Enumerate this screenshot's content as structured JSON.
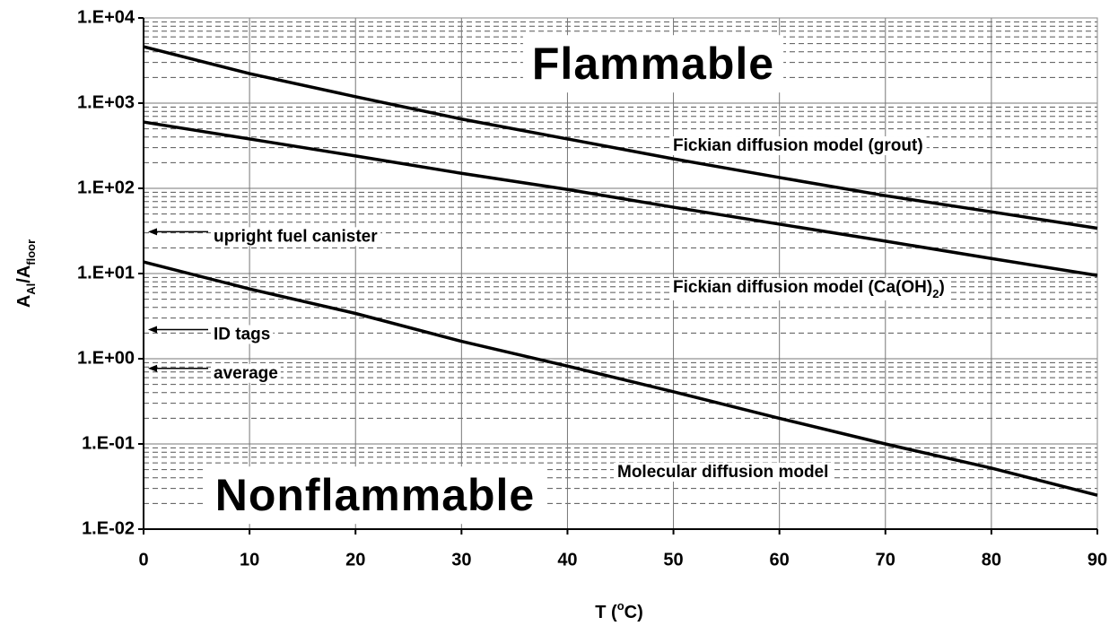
{
  "chart_data": {
    "type": "line",
    "xlabel": [
      "T (",
      "o",
      "C)"
    ],
    "ylabel": [
      "A",
      "Al",
      "/A",
      "floor"
    ],
    "x": [
      0,
      10,
      20,
      30,
      40,
      50,
      60,
      70,
      80,
      90
    ],
    "series": [
      {
        "label": [
          "Fickian diffusion model (grout)"
        ],
        "color": "#000000",
        "values": [
          4600,
          2220,
          1190,
          650,
          380,
          222,
          134,
          82,
          53,
          34
        ]
      },
      {
        "label": [
          "Fickian diffusion model (Ca(OH)",
          "2",
          ")"
        ],
        "color": "#000000",
        "values": [
          600,
          380,
          240,
          150,
          97,
          60,
          38,
          24,
          15,
          9.5
        ]
      },
      {
        "label": [
          "Molecular diffusion model"
        ],
        "color": "#000000",
        "values": [
          13.7,
          6.6,
          3.4,
          1.6,
          0.82,
          0.41,
          0.2,
          0.1,
          0.052,
          0.025
        ]
      }
    ],
    "regions": [
      "Flammable",
      "Nonflammable"
    ],
    "annotations": [
      {
        "text": "upright fuel canister",
        "value": 31
      },
      {
        "text": "ID tags",
        "value": 2.2
      },
      {
        "text": "average",
        "value": 0.77
      }
    ],
    "xlim": [
      0,
      90
    ],
    "xticks": [
      0,
      10,
      20,
      30,
      40,
      50,
      60,
      70,
      80,
      90
    ],
    "ylim": [
      0.01,
      10000
    ],
    "yticks": [
      {
        "value": 0.01,
        "label": "1.E-02"
      },
      {
        "value": 0.1,
        "label": "1.E-01"
      },
      {
        "value": 1,
        "label": "1.E+00"
      },
      {
        "value": 10,
        "label": "1.E+01"
      },
      {
        "value": 100,
        "label": "1.E+02"
      },
      {
        "value": 1000,
        "label": "1.E+03"
      },
      {
        "value": 10000,
        "label": "1.E+04"
      }
    ],
    "ylog": true,
    "grid": true,
    "minor_grid": true
  }
}
